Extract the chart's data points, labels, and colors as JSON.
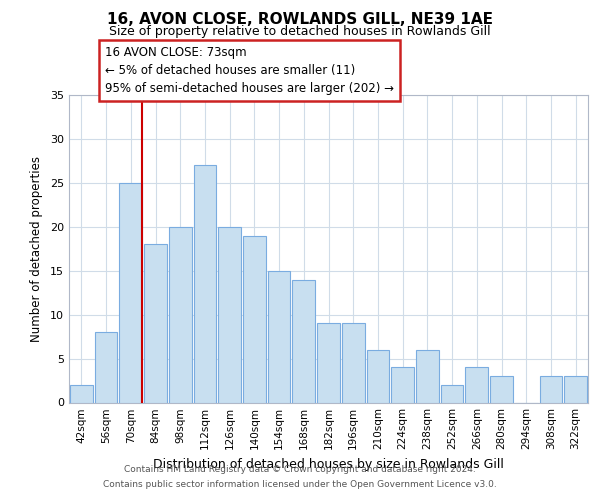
{
  "title": "16, AVON CLOSE, ROWLANDS GILL, NE39 1AE",
  "subtitle": "Size of property relative to detached houses in Rowlands Gill",
  "xlabel": "Distribution of detached houses by size in Rowlands Gill",
  "ylabel": "Number of detached properties",
  "bar_labels": [
    "42sqm",
    "56sqm",
    "70sqm",
    "84sqm",
    "98sqm",
    "112sqm",
    "126sqm",
    "140sqm",
    "154sqm",
    "168sqm",
    "182sqm",
    "196sqm",
    "210sqm",
    "224sqm",
    "238sqm",
    "252sqm",
    "266sqm",
    "280sqm",
    "294sqm",
    "308sqm",
    "322sqm"
  ],
  "bar_values": [
    2,
    8,
    25,
    18,
    20,
    27,
    20,
    19,
    15,
    14,
    9,
    9,
    6,
    4,
    6,
    2,
    4,
    3,
    0,
    3,
    3
  ],
  "bar_color": "#c8dff0",
  "bar_edge_color": "#7aace0",
  "vline_x_index": 2,
  "vline_color": "#cc0000",
  "ylim": [
    0,
    35
  ],
  "yticks": [
    0,
    5,
    10,
    15,
    20,
    25,
    30,
    35
  ],
  "annotation_title": "16 AVON CLOSE: 73sqm",
  "annotation_line1": "← 5% of detached houses are smaller (11)",
  "annotation_line2": "95% of semi-detached houses are larger (202) →",
  "footer1": "Contains HM Land Registry data © Crown copyright and database right 2024.",
  "footer2": "Contains public sector information licensed under the Open Government Licence v3.0.",
  "bg_color": "#ffffff",
  "grid_color": "#d0dce8",
  "ann_box_color": "#cc2222"
}
